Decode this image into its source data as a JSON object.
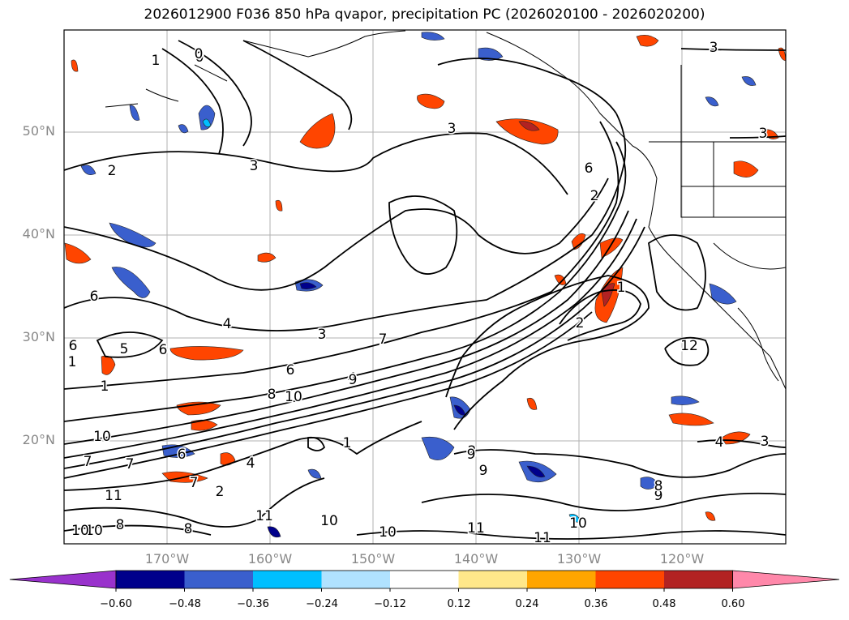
{
  "title": "2026012900 F036 850 hPa qvapor, precipitation PC (2026020100 - 2026020200)",
  "lat_labels": [
    "50°N",
    "40°N",
    "30°N",
    "20°N"
  ],
  "lon_labels": [
    "170°W",
    "160°W",
    "150°W",
    "140°W",
    "130°W",
    "120°W"
  ],
  "colorbar": {
    "ticks": [
      "−0.60",
      "−0.48",
      "−0.36",
      "−0.24",
      "−0.12",
      "0.12",
      "0.24",
      "0.36",
      "0.48",
      "0.60"
    ],
    "colors": [
      "#9932cc",
      "#00008b",
      "#3a5fcd",
      "#00bfff",
      "#b0e2ff",
      "#ffffff",
      "#ffe88a",
      "#ffa500",
      "#ff4500",
      "#b22222",
      "#ff88aa"
    ]
  },
  "contour_labels": [
    "1",
    "0",
    "3",
    "3",
    "3",
    "2",
    "6",
    "3",
    "6",
    "3",
    "6",
    "4",
    "6",
    "7",
    "4",
    "8",
    "10",
    "9",
    "1",
    "7",
    "2",
    "1",
    "6",
    "10",
    "7",
    "11",
    "10",
    "10",
    "8",
    "9",
    "11",
    "9",
    "10",
    "11",
    "11",
    "10",
    "8",
    "4",
    "3",
    "9",
    "8",
    "0",
    "5",
    "1",
    "6",
    "6",
    "4",
    "7",
    "2",
    "2",
    "2",
    "10",
    "1",
    "12"
  ]
}
